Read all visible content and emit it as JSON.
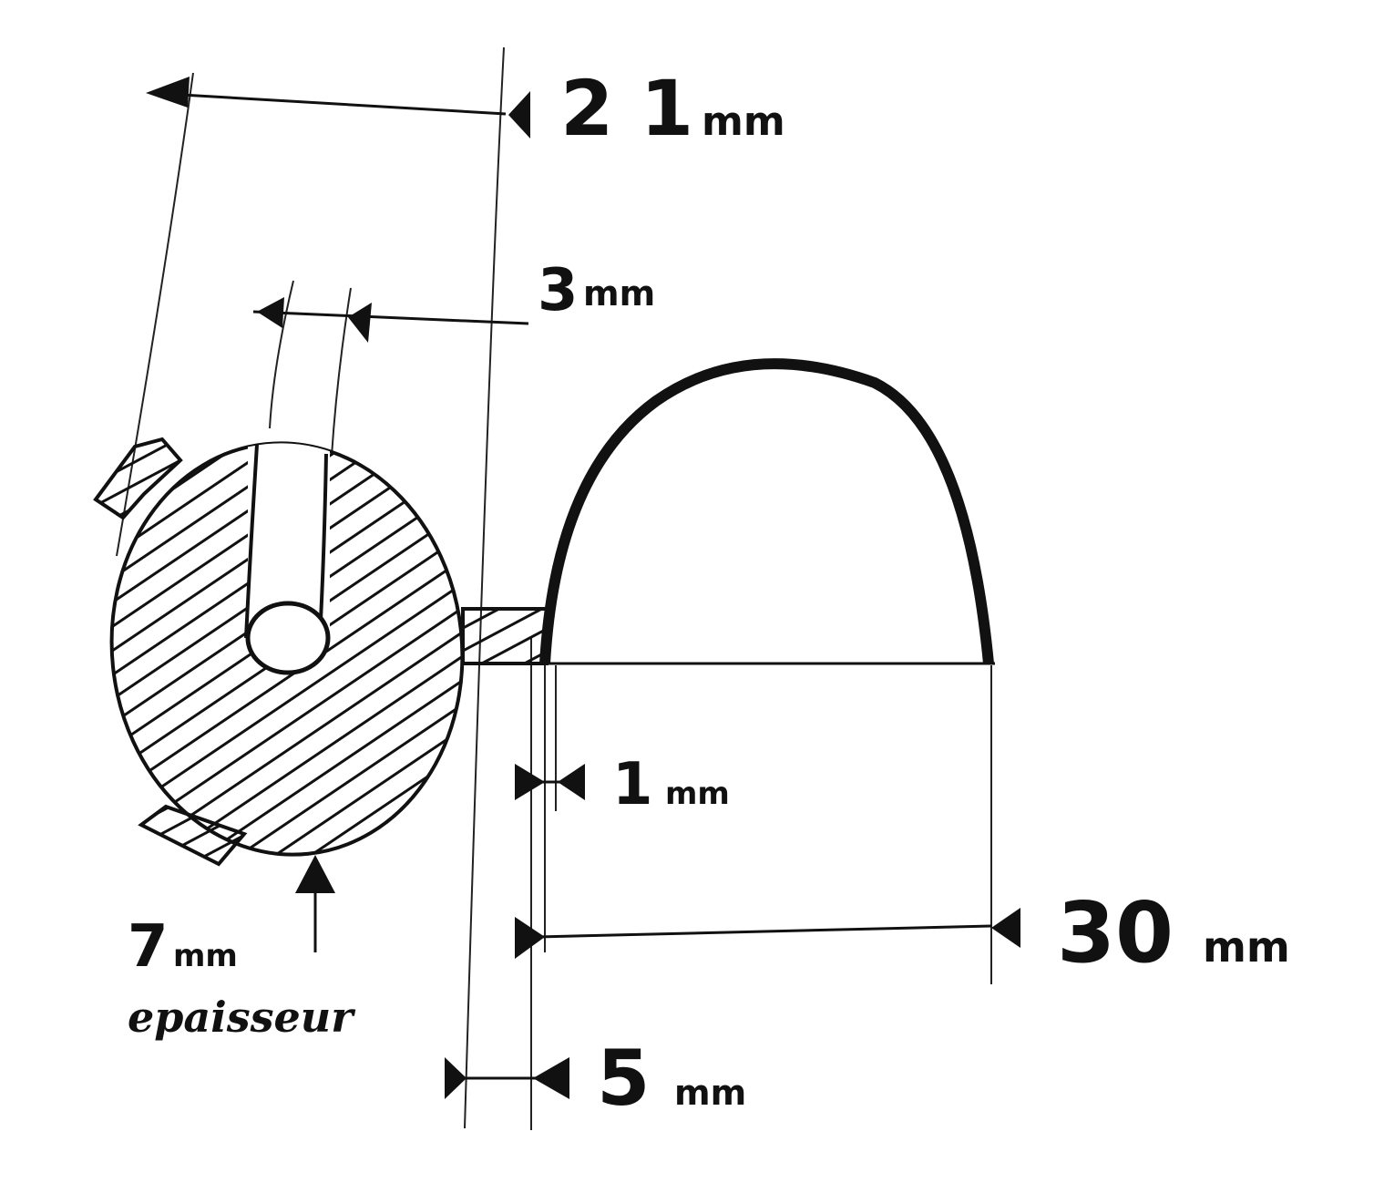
{
  "dimensions": {
    "overall_width": {
      "value": "2 1",
      "unit": "mm"
    },
    "slot_width": {
      "value": "3",
      "unit": "mm"
    },
    "wall_thickness": {
      "value": "1",
      "unit": "mm"
    },
    "base_width": {
      "value": "30",
      "unit": "mm"
    },
    "flange_offset": {
      "value": "5",
      "unit": "mm"
    }
  },
  "bulb_thickness": {
    "value": "7",
    "unit": "mm",
    "note": "epaisseur"
  },
  "colors": {
    "ink": "#111111",
    "paper": "#ffffff"
  }
}
